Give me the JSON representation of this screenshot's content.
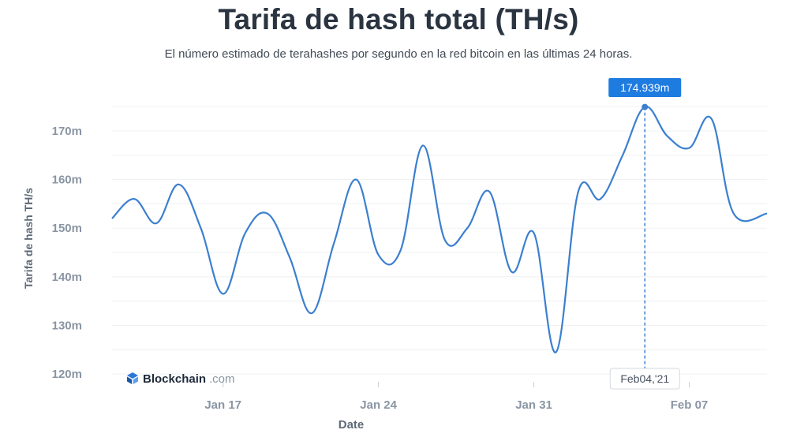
{
  "chart_data": {
    "type": "line",
    "title": "Tarifa de hash total (TH/s)",
    "subtitle": "El número estimado de terahashes por segundo en la red bitcoin en las últimas 24 horas.",
    "xlabel": "Date",
    "ylabel": "Tarifa de hash TH/s",
    "y_ticks": [
      "120m",
      "130m",
      "140m",
      "150m",
      "160m",
      "170m"
    ],
    "y_tick_values": [
      120,
      130,
      140,
      150,
      160,
      170
    ],
    "ylim": [
      120,
      175
    ],
    "x_ticks": [
      "Jan 17",
      "Jan 24",
      "Jan 31",
      "Feb 07"
    ],
    "x_tick_days": [
      17,
      24,
      31,
      38
    ],
    "xlim_days": [
      12,
      41.5
    ],
    "grid": true,
    "line_color": "#3b7fcf",
    "series": [
      {
        "x_days": [
          12.0,
          13.0,
          14.0,
          15.0,
          16.0,
          17.0,
          18.0,
          19.0,
          20.0,
          21.0,
          22.0,
          23.0,
          24.0,
          25.0,
          26.0,
          27.0,
          28.0,
          29.0,
          30.0,
          31.0,
          32.0,
          33.0,
          34.0,
          35.0,
          36.0,
          37.0,
          38.0,
          39.0,
          40.0,
          41.5
        ],
        "values": [
          152.0,
          156.0,
          151.0,
          159.0,
          150.0,
          136.5,
          149.0,
          153.0,
          144.0,
          132.5,
          147.0,
          160.0,
          144.5,
          145.5,
          167.0,
          147.5,
          150.0,
          157.5,
          141.0,
          149.0,
          124.5,
          157.5,
          156.0,
          165.0,
          174.939,
          169.0,
          166.5,
          172.5,
          153.0,
          153.0
        ]
      }
    ],
    "highlight": {
      "x_day": 36.0,
      "value_label": "174.939m",
      "date_label": "Feb04,'21"
    }
  },
  "watermark": {
    "brand": "Blockchain",
    "suffix": ".com",
    "icon": "blockchain-logo-icon",
    "color": "#1e2a3a"
  }
}
